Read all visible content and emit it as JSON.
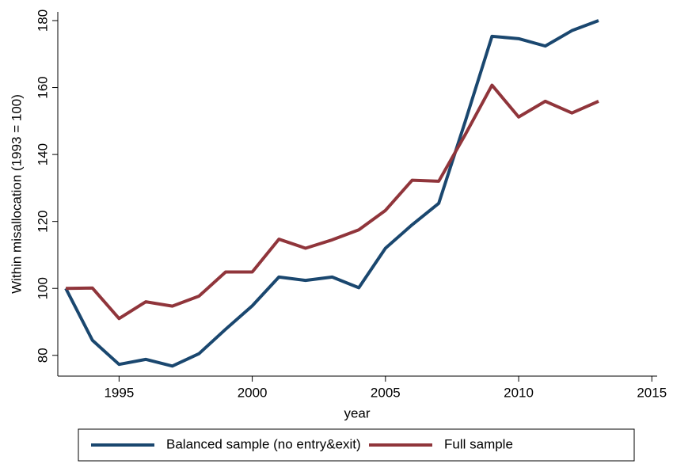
{
  "chart_data": {
    "type": "line",
    "x_label": "year",
    "y_label": "Within misallocation (1993 = 100)",
    "x": [
      1993,
      1994,
      1995,
      1996,
      1997,
      1998,
      1999,
      2000,
      2001,
      2002,
      2003,
      2004,
      2005,
      2006,
      2007,
      2008,
      2009,
      2010,
      2011,
      2012,
      2013
    ],
    "series": [
      {
        "name": "Balanced sample (no entry&exit)",
        "color": "#1a476f",
        "values": [
          100,
          84.5,
          77.3,
          78.8,
          76.8,
          80.5,
          87.8,
          94.8,
          103.4,
          102.4,
          103.4,
          100.2,
          112,
          119,
          125.4,
          150,
          175.3,
          174.6,
          172.4,
          177,
          180
        ]
      },
      {
        "name": "Full sample",
        "color": "#90353b",
        "values": [
          100,
          100.1,
          91,
          96,
          94.7,
          97.7,
          104.9,
          104.9,
          114.7,
          112,
          114.5,
          117.5,
          123.3,
          132.3,
          132,
          146,
          160.7,
          151.2,
          155.9,
          152.4,
          155.9
        ]
      }
    ],
    "xlim": [
      1992.7,
      2015.2
    ],
    "xticks": [
      1995,
      2000,
      2005,
      2010,
      2015
    ],
    "ylim": [
      73.8,
      182.6
    ],
    "yticks": [
      80,
      100,
      120,
      140,
      160,
      180
    ],
    "grid": false,
    "legend": "bottom"
  }
}
